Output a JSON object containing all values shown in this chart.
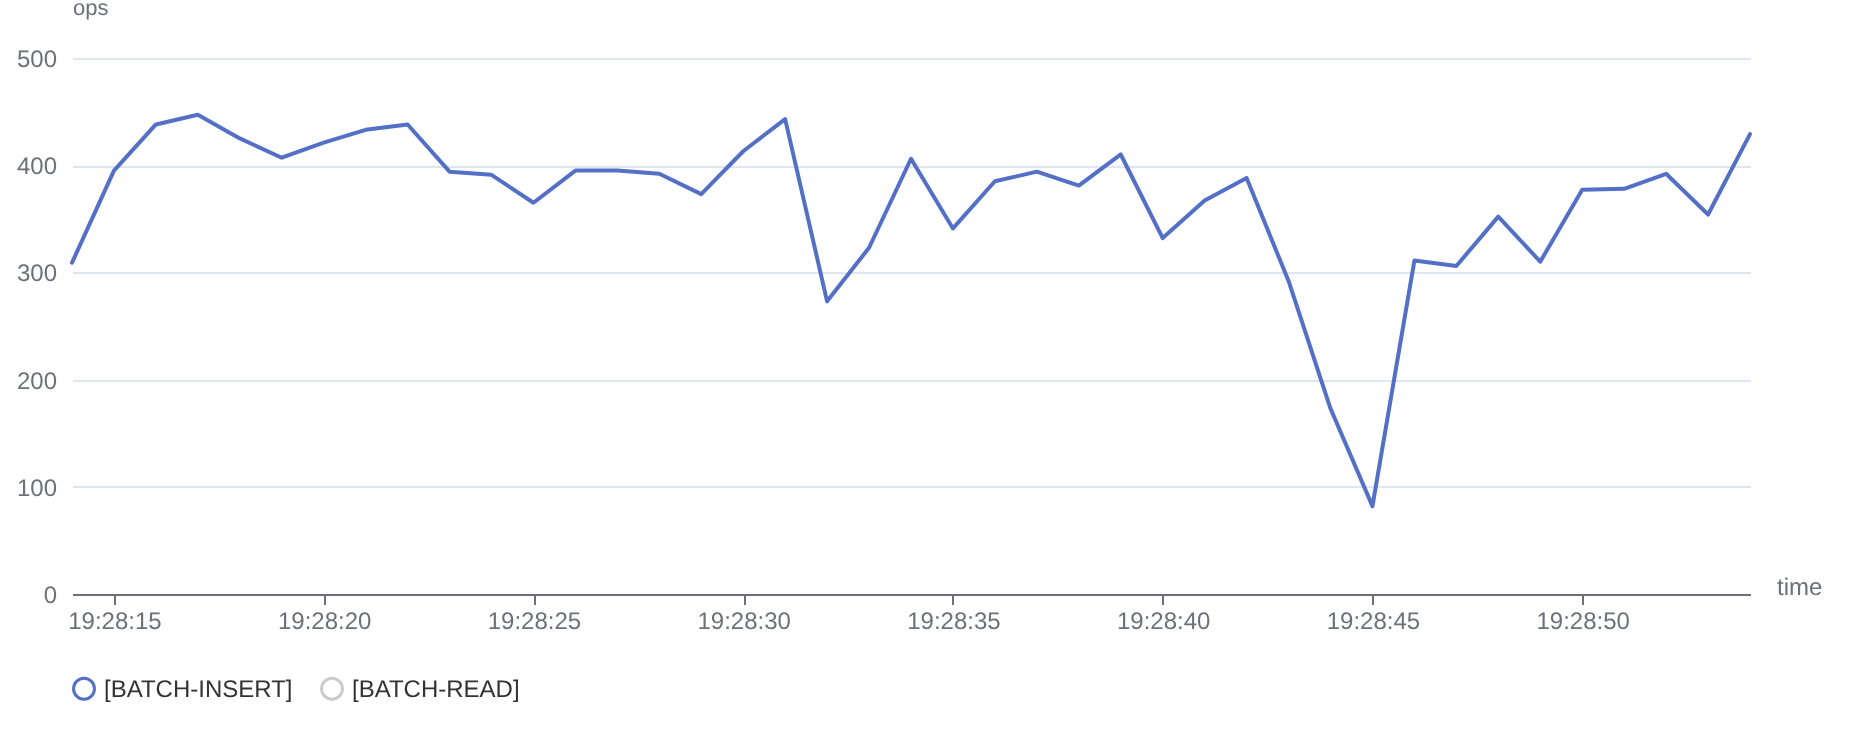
{
  "chart_data": {
    "type": "line",
    "xlabel": "time",
    "ylabel": "ops",
    "categories": [
      null,
      "19:28:15",
      null,
      null,
      null,
      null,
      "19:28:20",
      null,
      null,
      null,
      null,
      "19:28:25",
      null,
      null,
      null,
      null,
      "19:28:30",
      null,
      null,
      null,
      null,
      "19:28:35",
      null,
      null,
      null,
      null,
      "19:28:40",
      null,
      null,
      null,
      null,
      "19:28:45",
      null,
      null,
      null,
      null,
      "19:28:50",
      null,
      null,
      null,
      null
    ],
    "series": [
      {
        "name": "[BATCH-INSERT]",
        "color": "#5470c6",
        "values": [
          309,
          395,
          438,
          447,
          425,
          407,
          421,
          433,
          438,
          394,
          391,
          365,
          395,
          395,
          392,
          373,
          413,
          443,
          273,
          323,
          406,
          341,
          385,
          394,
          381,
          410,
          332,
          367,
          388,
          292,
          173,
          82,
          311,
          306,
          352,
          310,
          377,
          378,
          392,
          354,
          429
        ]
      },
      {
        "name": "[BATCH-READ]",
        "color": "#cccccc",
        "values": [
          null,
          null,
          null,
          null,
          null,
          null,
          null,
          null,
          null,
          null,
          null,
          null,
          null,
          null,
          null,
          null,
          null,
          null,
          null,
          null,
          null,
          null,
          null,
          null,
          null,
          null,
          null,
          null,
          null,
          null,
          null,
          null,
          null,
          null,
          null,
          null,
          null,
          null,
          null,
          null,
          null
        ]
      }
    ],
    "ylim": [
      0,
      500
    ],
    "yticks": [
      0,
      100,
      200,
      300,
      400,
      500
    ],
    "grid": "y",
    "legend": "bottom",
    "marker": "none",
    "line_style": "solid"
  }
}
